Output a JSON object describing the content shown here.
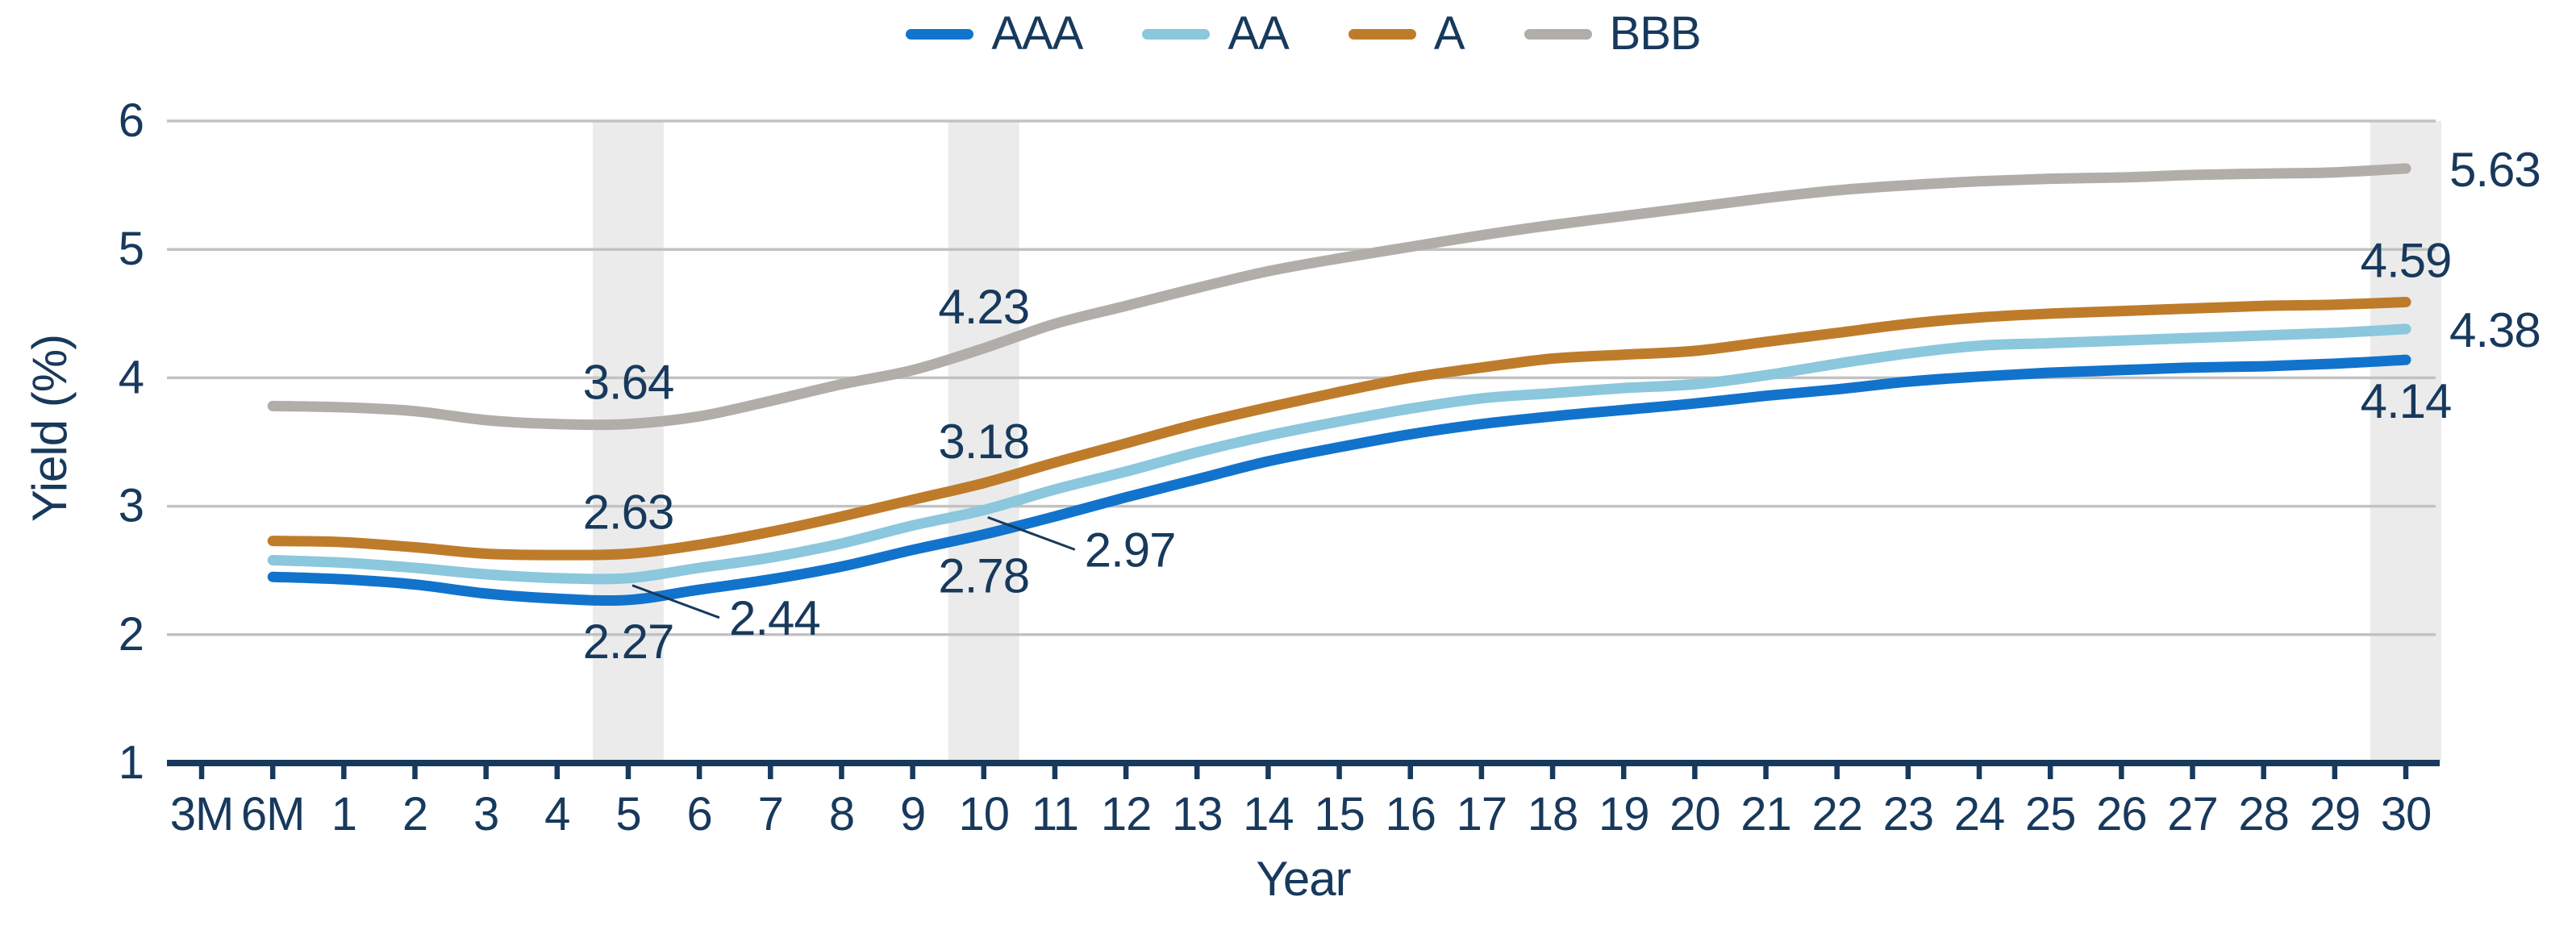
{
  "chart_data": {
    "type": "line",
    "title": "",
    "xlabel": "Year",
    "ylabel": "Yield (%)",
    "ylim": [
      1,
      6
    ],
    "y_ticks": [
      1,
      2,
      3,
      4,
      5,
      6
    ],
    "grid": "horizontal",
    "legend_position": "top",
    "categories": [
      "3M",
      "6M",
      "1",
      "2",
      "3",
      "4",
      "5",
      "6",
      "7",
      "8",
      "9",
      "10",
      "11",
      "12",
      "13",
      "14",
      "15",
      "16",
      "17",
      "18",
      "19",
      "20",
      "21",
      "22",
      "23",
      "24",
      "25",
      "26",
      "27",
      "28",
      "29",
      "30"
    ],
    "highlighted_categories": [
      "5",
      "10",
      "30"
    ],
    "series": [
      {
        "name": "AAA",
        "color": "#1273CC",
        "values": [
          null,
          2.45,
          2.43,
          2.39,
          2.32,
          2.28,
          2.27,
          2.35,
          2.43,
          2.53,
          2.66,
          2.78,
          2.92,
          3.07,
          3.21,
          3.35,
          3.46,
          3.56,
          3.64,
          3.7,
          3.75,
          3.8,
          3.86,
          3.91,
          3.97,
          4.01,
          4.04,
          4.06,
          4.08,
          4.09,
          4.11,
          4.14
        ]
      },
      {
        "name": "AA",
        "color": "#8BC7DD",
        "values": [
          null,
          2.58,
          2.56,
          2.52,
          2.47,
          2.44,
          2.44,
          2.52,
          2.6,
          2.71,
          2.85,
          2.97,
          3.13,
          3.27,
          3.42,
          3.55,
          3.66,
          3.76,
          3.84,
          3.88,
          3.92,
          3.95,
          4.02,
          4.11,
          4.19,
          4.25,
          4.27,
          4.29,
          4.31,
          4.33,
          4.35,
          4.38
        ]
      },
      {
        "name": "A",
        "color": "#BE7C2B",
        "values": [
          null,
          2.73,
          2.72,
          2.68,
          2.63,
          2.62,
          2.63,
          2.7,
          2.8,
          2.92,
          3.05,
          3.18,
          3.34,
          3.49,
          3.64,
          3.77,
          3.89,
          4.0,
          4.08,
          4.15,
          4.18,
          4.21,
          4.28,
          4.35,
          4.42,
          4.47,
          4.5,
          4.52,
          4.54,
          4.56,
          4.57,
          4.59
        ]
      },
      {
        "name": "BBB",
        "color": "#B1AEA9",
        "values": [
          null,
          3.78,
          3.77,
          3.74,
          3.67,
          3.64,
          3.64,
          3.7,
          3.82,
          3.95,
          4.06,
          4.23,
          4.42,
          4.56,
          4.7,
          4.83,
          4.93,
          5.02,
          5.11,
          5.19,
          5.26,
          5.33,
          5.4,
          5.46,
          5.5,
          5.53,
          5.55,
          5.56,
          5.58,
          5.59,
          5.6,
          5.63
        ]
      }
    ],
    "data_labels": [
      {
        "series": "BBB",
        "category": "5",
        "label": "3.64",
        "placement": "above"
      },
      {
        "series": "A",
        "category": "5",
        "label": "2.63",
        "placement": "above"
      },
      {
        "series": "AA",
        "category": "5",
        "label": "2.44",
        "placement": "leader"
      },
      {
        "series": "AAA",
        "category": "5",
        "label": "2.27",
        "placement": "below"
      },
      {
        "series": "BBB",
        "category": "10",
        "label": "4.23",
        "placement": "above"
      },
      {
        "series": "A",
        "category": "10",
        "label": "3.18",
        "placement": "above"
      },
      {
        "series": "AA",
        "category": "10",
        "label": "2.97",
        "placement": "leader"
      },
      {
        "series": "AAA",
        "category": "10",
        "label": "2.78",
        "placement": "below"
      },
      {
        "series": "BBB",
        "category": "30",
        "label": "5.63",
        "placement": "right"
      },
      {
        "series": "A",
        "category": "30",
        "label": "4.59",
        "placement": "above"
      },
      {
        "series": "AA",
        "category": "30",
        "label": "4.38",
        "placement": "right"
      },
      {
        "series": "AAA",
        "category": "30",
        "label": "4.14",
        "placement": "below"
      }
    ],
    "style": {
      "text_color": "#17395C",
      "grid_color": "#C2C2C2",
      "band_color": "#EBEBEB",
      "axis_color": "#17395C",
      "background": "#FFFFFF"
    }
  }
}
